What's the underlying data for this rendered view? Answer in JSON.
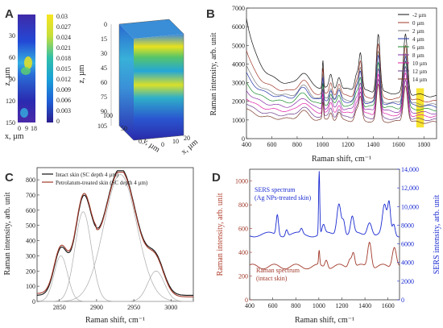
{
  "panels": {
    "A": "A",
    "B": "B",
    "C": "C",
    "D": "D"
  },
  "chart_data": [
    {
      "id": "A",
      "type": "heatmap",
      "views": [
        "2D depth map",
        "3D volume"
      ],
      "colorbar": {
        "ticks": [
          "0.03",
          "0.027",
          "0.024",
          "0.021",
          "0.018",
          "0.015",
          "0.012",
          "0.009",
          "0.006",
          "0.003",
          "0"
        ],
        "colors": [
          "#2b1d8e",
          "#1f5fd6",
          "#1aa0d8",
          "#30c0a8",
          "#6fd36a",
          "#c6df3a",
          "#f7e51f"
        ]
      },
      "map2d": {
        "ylabel": "z, µm",
        "xlabel": "x, µm",
        "yticks": [
          "30",
          "60",
          "90",
          "120",
          "150"
        ],
        "xticks": [
          "0",
          "9",
          "18"
        ]
      },
      "map3d": {
        "ylabel": "z, µm",
        "yticks": [
          "0",
          "15",
          "30",
          "45",
          "60",
          "75",
          "90",
          "105"
        ],
        "ylabel2": "y, µm",
        "y2ticks": [
          "100",
          "50",
          "0"
        ],
        "xlabel": "x, µm",
        "xticks": [
          "0",
          "10",
          "20"
        ]
      }
    },
    {
      "id": "B",
      "type": "line",
      "xlabel": "Raman shift, cm⁻¹",
      "ylabel": "Raman intensity, arb. unit",
      "xlim": [
        400,
        1900
      ],
      "ylim": [
        0,
        7000
      ],
      "xticks": [
        "400",
        "600",
        "800",
        "1000",
        "1200",
        "1400",
        "1600",
        "1800"
      ],
      "yticks": [
        "0",
        "1000",
        "2000",
        "3000",
        "4000",
        "5000",
        "6000",
        "7000"
      ],
      "legend_position": "top-right",
      "series": [
        {
          "name": "-2 µm",
          "color": "#111111",
          "base": 3050,
          "tail": 1750,
          "start": 6500,
          "amp": 1.0
        },
        {
          "name": "0 µm",
          "color": "#a0392a",
          "base": 2650,
          "tail": 1550,
          "start": 4750,
          "amp": 0.92
        },
        {
          "name": "2 µm",
          "color": "#7a7a7a",
          "base": 2400,
          "tail": 1400,
          "start": 3900,
          "amp": 0.85
        },
        {
          "name": "4 µm",
          "color": "#2233aa",
          "base": 2300,
          "tail": 1330,
          "start": 3500,
          "amp": 0.82
        },
        {
          "name": "6 µm",
          "color": "#1a8a2a",
          "base": 2050,
          "tail": 1200,
          "start": 3000,
          "amp": 0.78
        },
        {
          "name": "8 µm",
          "color": "#8a2aa8",
          "base": 1800,
          "tail": 1080,
          "start": 2600,
          "amp": 0.74
        },
        {
          "name": "10 µm",
          "color": "#e11ea8",
          "base": 1550,
          "tail": 960,
          "start": 2200,
          "amp": 0.7
        },
        {
          "name": "12 µm",
          "color": "#6b3a8a",
          "base": 1300,
          "tail": 820,
          "start": 1900,
          "amp": 0.66
        },
        {
          "name": "14 µm",
          "color": "#7a3a2a",
          "base": 1100,
          "tail": 700,
          "start": 1600,
          "amp": 0.62
        }
      ],
      "peaks": [
        [
          850,
          700,
          40
        ],
        [
          1003,
          1500,
          5
        ],
        [
          1065,
          700,
          12
        ],
        [
          1130,
          650,
          14
        ],
        [
          1270,
          900,
          15
        ],
        [
          1300,
          1900,
          12
        ],
        [
          1440,
          3100,
          14
        ],
        [
          1655,
          3200,
          16
        ]
      ],
      "highlight_band": [
        1740,
        1800
      ]
    },
    {
      "id": "C",
      "type": "line",
      "xlabel": "Raman shift, cm⁻¹",
      "ylabel": "Raman intensity, arb. unit",
      "xlim": [
        2820,
        3030
      ],
      "ylim": [
        0,
        880
      ],
      "xticks": [
        "2850",
        "2900",
        "2950",
        "3000"
      ],
      "yticks": [
        "0",
        "100",
        "200",
        "300",
        "400",
        "500",
        "600",
        "700",
        "800"
      ],
      "legend_position": "top-left",
      "series": [
        {
          "name": "Intact skin (SC depth 4 µm)",
          "color": "#111111"
        },
        {
          "name": "Petrolatum-treated skin (SC depth 4 µm)",
          "color": "#a0392a"
        }
      ],
      "fit_bands": [
        {
          "center": 2852,
          "height": 300,
          "width": 9
        },
        {
          "center": 2882,
          "height": 590,
          "width": 11
        },
        {
          "center": 2932,
          "height": 835,
          "width": 22
        },
        {
          "center": 2980,
          "height": 200,
          "width": 11
        }
      ]
    },
    {
      "id": "D",
      "type": "line",
      "xlabel": "Raman shift, cm⁻¹",
      "ylabel": "Raman intensity, arb. unit",
      "ylabel_right": "SERS intensity, arb. unit",
      "xlim": [
        400,
        1700
      ],
      "xticks": [
        "400",
        "600",
        "800",
        "1000",
        "1200",
        "1400",
        "1600"
      ],
      "ylim_left": [
        0,
        1100
      ],
      "yticks_left": [
        "0",
        "200",
        "400",
        "600",
        "800",
        "1000"
      ],
      "ylim_right": [
        0,
        14000
      ],
      "yticks_right": [
        "0",
        "2000",
        "4000",
        "6000",
        "8000",
        "10,000",
        "12,000",
        "14,000"
      ],
      "annotation_sers": [
        "SERS spectrum",
        "(Ag NPs-treated skin)"
      ],
      "annotation_raman": [
        "Raman spectrum",
        "(intact skin)"
      ],
      "series": [
        {
          "name": "SERS spectrum (Ag NPs-treated skin)",
          "color": "#1a2ad0",
          "axis": "right",
          "base": 7000,
          "peaks": [
            [
              640,
              2200,
              10
            ],
            [
              720,
              700,
              10
            ],
            [
              850,
              500,
              10
            ],
            [
              1003,
              6800,
              5
            ],
            [
              1040,
              900,
              12
            ],
            [
              1175,
              3500,
              18
            ],
            [
              1215,
              1500,
              12
            ],
            [
              1290,
              1800,
              14
            ],
            [
              1440,
              1500,
              20
            ],
            [
              1570,
              3000,
              18
            ],
            [
              1610,
              3200,
              12
            ],
            [
              1650,
              1200,
              12
            ]
          ]
        },
        {
          "name": "Raman spectrum (intact skin)",
          "color": "#a0392a",
          "axis": "left",
          "base": 280,
          "peaks": [
            [
              1003,
              120,
              5
            ],
            [
              1065,
              70,
              12
            ],
            [
              1270,
              80,
              15
            ],
            [
              1300,
              120,
              12
            ],
            [
              1440,
              220,
              16
            ],
            [
              1655,
              180,
              18
            ]
          ]
        }
      ]
    }
  ]
}
